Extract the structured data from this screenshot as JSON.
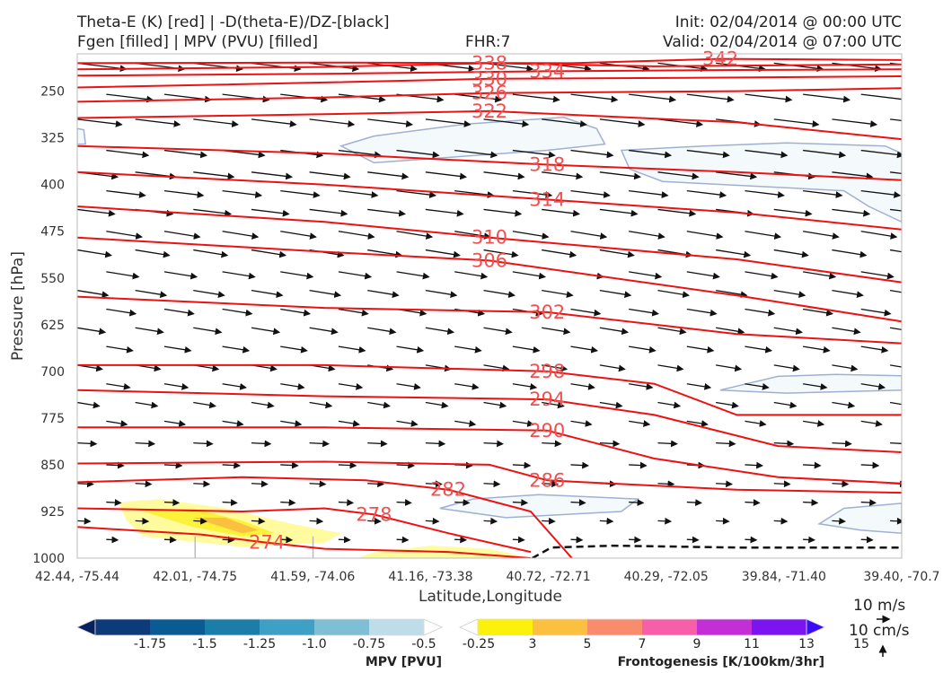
{
  "header": {
    "title_line1": "Theta-E (K) [red] | -D(theta-E)/DZ-[black]",
    "title_line2": "Fgen [filled] | MPV (PVU) [filled]",
    "fhr": "FHR:7",
    "init": "Init: 02/04/2014 @ 00:00 UTC",
    "valid": "Valid: 02/04/2014 @ 07:00 UTC"
  },
  "chart_data": {
    "type": "contour",
    "xlabel": "Latitude,Longitude",
    "ylabel": "Pressure [hPa]",
    "x_ticks": [
      "42.44, -75.44",
      "42.01, -74.75",
      "41.59, -74.06",
      "41.16, -73.38",
      "40.72, -72.71",
      "40.29, -72.05",
      "39.84, -71.40",
      "39.40, -70.7"
    ],
    "y_ticks": [
      250,
      325,
      400,
      475,
      550,
      625,
      700,
      775,
      850,
      925,
      1000
    ],
    "y_range": [
      190,
      1000
    ],
    "y_inverted": true,
    "theta_e_contours": [
      {
        "level": 342,
        "label": "342",
        "x_pos": 0.78,
        "p": [
          [
            0,
            205
          ],
          [
            0.3,
            204
          ],
          [
            0.6,
            205
          ],
          [
            0.78,
            198
          ],
          [
            1,
            200
          ]
        ]
      },
      {
        "level": 338,
        "label": "338",
        "x_pos": 0.5,
        "p": [
          [
            0,
            215
          ],
          [
            0.3,
            211
          ],
          [
            0.5,
            205
          ],
          [
            0.7,
            210
          ],
          [
            1,
            207
          ]
        ]
      },
      {
        "level": 334,
        "label": "334",
        "x_pos": 0.57,
        "p": [
          [
            0,
            225
          ],
          [
            0.3,
            222
          ],
          [
            0.57,
            218
          ],
          [
            0.8,
            216
          ],
          [
            1,
            215
          ]
        ]
      },
      {
        "level": 330,
        "label": "330",
        "x_pos": 0.5,
        "p": [
          [
            0,
            244
          ],
          [
            0.3,
            236
          ],
          [
            0.5,
            230
          ],
          [
            0.8,
            228
          ],
          [
            1,
            226
          ]
        ]
      },
      {
        "level": 326,
        "label": "326",
        "x_pos": 0.5,
        "p": [
          [
            0,
            267
          ],
          [
            0.3,
            260
          ],
          [
            0.5,
            253
          ],
          [
            0.8,
            250
          ],
          [
            1,
            245
          ]
        ]
      },
      {
        "level": 322,
        "label": "322",
        "x_pos": 0.5,
        "p": [
          [
            0,
            293
          ],
          [
            0.3,
            287
          ],
          [
            0.5,
            282
          ],
          [
            0.8,
            300
          ],
          [
            1,
            327
          ]
        ]
      },
      {
        "level": 318,
        "label": "318",
        "x_pos": 0.57,
        "p": [
          [
            0,
            338
          ],
          [
            0.3,
            350
          ],
          [
            0.57,
            368
          ],
          [
            0.8,
            380
          ],
          [
            1,
            393
          ]
        ]
      },
      {
        "level": 314,
        "label": "314",
        "x_pos": 0.57,
        "p": [
          [
            0,
            380
          ],
          [
            0.3,
            400
          ],
          [
            0.57,
            424
          ],
          [
            0.8,
            445
          ],
          [
            1,
            472
          ]
        ]
      },
      {
        "level": 310,
        "label": "310",
        "x_pos": 0.5,
        "p": [
          [
            0,
            435
          ],
          [
            0.3,
            460
          ],
          [
            0.5,
            485
          ],
          [
            0.8,
            520
          ],
          [
            1,
            557
          ]
        ]
      },
      {
        "level": 306,
        "label": "306",
        "x_pos": 0.5,
        "p": [
          [
            0,
            485
          ],
          [
            0.3,
            508
          ],
          [
            0.5,
            522
          ],
          [
            0.8,
            578
          ],
          [
            1,
            620
          ]
        ]
      },
      {
        "level": 302,
        "label": "302",
        "x_pos": 0.57,
        "p": [
          [
            0,
            580
          ],
          [
            0.3,
            598
          ],
          [
            0.57,
            605
          ],
          [
            0.8,
            640
          ],
          [
            1,
            655
          ]
        ]
      },
      {
        "level": 298,
        "label": "298",
        "x_pos": 0.57,
        "p": [
          [
            0,
            690
          ],
          [
            0.3,
            690
          ],
          [
            0.57,
            700
          ],
          [
            0.7,
            720
          ],
          [
            0.8,
            770
          ],
          [
            1,
            770
          ]
        ]
      },
      {
        "level": 294,
        "label": "294",
        "x_pos": 0.57,
        "p": [
          [
            0,
            730
          ],
          [
            0.3,
            740
          ],
          [
            0.57,
            745
          ],
          [
            0.7,
            770
          ],
          [
            0.85,
            820
          ],
          [
            1,
            830
          ]
        ]
      },
      {
        "level": 290,
        "label": "290",
        "x_pos": 0.57,
        "p": [
          [
            0,
            790
          ],
          [
            0.3,
            790
          ],
          [
            0.57,
            795
          ],
          [
            0.7,
            840
          ],
          [
            0.85,
            870
          ],
          [
            1,
            880
          ]
        ]
      },
      {
        "level": 286,
        "label": "286",
        "x_pos": 0.57,
        "p": [
          [
            0,
            848
          ],
          [
            0.3,
            845
          ],
          [
            0.5,
            850
          ],
          [
            0.57,
            875
          ],
          [
            0.8,
            890
          ],
          [
            1,
            895
          ]
        ]
      },
      {
        "level": 282,
        "label": "282",
        "x_pos": 0.45,
        "p": [
          [
            0,
            878
          ],
          [
            0.2,
            870
          ],
          [
            0.35,
            875
          ],
          [
            0.45,
            890
          ],
          [
            0.55,
            925
          ],
          [
            0.6,
            1000
          ]
        ]
      },
      {
        "level": 278,
        "label": "278",
        "x_pos": 0.36,
        "p": [
          [
            0,
            920
          ],
          [
            0.2,
            925
          ],
          [
            0.3,
            920
          ],
          [
            0.36,
            930
          ],
          [
            0.45,
            960
          ],
          [
            0.55,
            990
          ]
        ]
      },
      {
        "level": 274,
        "label": "274",
        "x_pos": 0.23,
        "p": [
          [
            0,
            950
          ],
          [
            0.15,
            962
          ],
          [
            0.23,
            975
          ],
          [
            0.3,
            985
          ],
          [
            0.45,
            990
          ],
          [
            0.55,
            1000
          ]
        ]
      }
    ],
    "colorbars": [
      {
        "title": "MPV [PVU]",
        "labels": [
          "-1.75",
          "-1.5",
          "-1.25",
          "-1.0",
          "-0.75",
          "-0.5",
          "-0.25"
        ],
        "colors": [
          "#08205e",
          "#0d3a78",
          "#0a5a94",
          "#1b7ea8",
          "#3ea0c4",
          "#7fbfd6",
          "#bfdde8",
          "#ffffff"
        ]
      },
      {
        "title": "Frontogenesis [K/100km/3hr]",
        "labels": [
          "3",
          "5",
          "7",
          "9",
          "11",
          "13",
          "15"
        ],
        "colors": [
          "#ffffff",
          "#fcf10a",
          "#fcc040",
          "#fa8c6e",
          "#f760a8",
          "#c22fd6",
          "#7b14f0",
          "#3a0dfa"
        ]
      }
    ],
    "wind_reference": {
      "u_label": "10 m/s",
      "w_label": "10 cm/s"
    }
  }
}
